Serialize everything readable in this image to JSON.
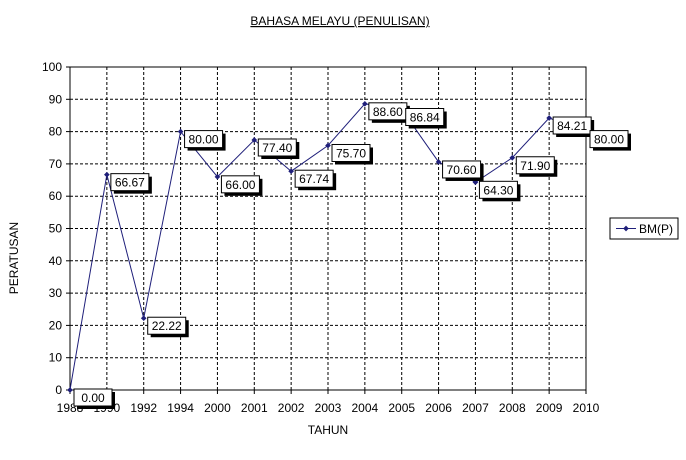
{
  "chart_data": {
    "type": "line",
    "title": "BAHASA MELAYU (PENULISAN)",
    "xlabel": "TAHUN",
    "ylabel": "PERATUSAN",
    "categories": [
      "1988",
      "1990",
      "1992",
      "1994",
      "2000",
      "2001",
      "2002",
      "2003",
      "2004",
      "2005",
      "2006",
      "2007",
      "2008",
      "2009",
      "2010"
    ],
    "series": [
      {
        "name": "BM(P)",
        "values": [
          0.0,
          66.67,
          22.22,
          80.0,
          66.0,
          77.4,
          67.74,
          75.7,
          88.6,
          86.84,
          70.6,
          64.3,
          71.9,
          84.21,
          80.0
        ],
        "labels": [
          "0.00",
          "66.67",
          "22.22",
          "80.00",
          "66.00",
          "77.40",
          "67.74",
          "75.70",
          "88.60",
          "86.84",
          "70.60",
          "64.30",
          "71.90",
          "84.21",
          "80.00"
        ],
        "color": "#1f1f7a"
      }
    ],
    "ylim": [
      0,
      100
    ],
    "yticks": [
      "0",
      "10",
      "20",
      "30",
      "40",
      "50",
      "60",
      "70",
      "80",
      "90",
      "100"
    ],
    "grid": true,
    "legend": "right"
  }
}
